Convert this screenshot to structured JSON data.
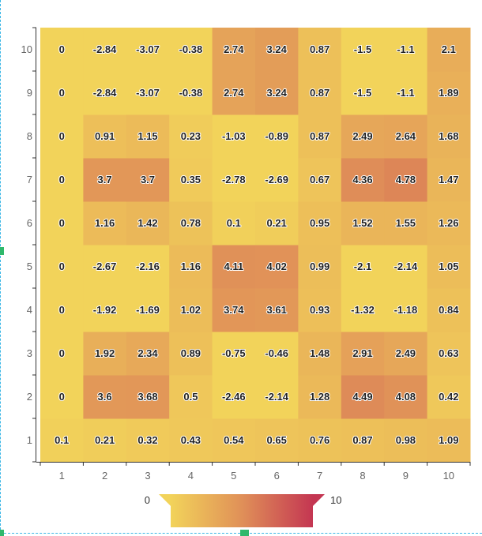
{
  "chart_data": {
    "type": "heatmap",
    "title": "",
    "xlabel": "",
    "ylabel": "",
    "x_categories": [
      "1",
      "2",
      "3",
      "4",
      "5",
      "6",
      "7",
      "8",
      "9",
      "10"
    ],
    "y_categories": [
      "1",
      "2",
      "3",
      "4",
      "5",
      "6",
      "7",
      "8",
      "9",
      "10"
    ],
    "values": [
      [
        0.1,
        0.21,
        0.32,
        0.43,
        0.54,
        0.65,
        0.76,
        0.87,
        0.98,
        1.09
      ],
      [
        0,
        3.6,
        3.68,
        0.5,
        -2.46,
        -2.14,
        1.28,
        4.49,
        4.08,
        0.42
      ],
      [
        0,
        1.92,
        2.34,
        0.89,
        -0.75,
        -0.46,
        1.48,
        2.91,
        2.49,
        0.63
      ],
      [
        0,
        -1.92,
        -1.69,
        1.02,
        3.74,
        3.61,
        0.93,
        -1.32,
        -1.18,
        0.84
      ],
      [
        0,
        -2.67,
        -2.16,
        1.16,
        4.11,
        4.02,
        0.99,
        -2.1,
        -2.14,
        1.05
      ],
      [
        0,
        1.16,
        1.42,
        0.78,
        0.1,
        0.21,
        0.95,
        1.52,
        1.55,
        1.26
      ],
      [
        0,
        3.7,
        3.7,
        0.35,
        -2.78,
        -2.69,
        0.67,
        4.36,
        4.78,
        1.47
      ],
      [
        0,
        0.91,
        1.15,
        0.23,
        -1.03,
        -0.89,
        0.87,
        2.49,
        2.64,
        1.68
      ],
      [
        0,
        -2.84,
        -3.07,
        -0.38,
        2.74,
        3.24,
        0.87,
        -1.5,
        -1.1,
        1.89
      ],
      [
        0,
        -2.84,
        -3.07,
        -0.38,
        2.74,
        3.24,
        0.87,
        -1.5,
        -1.1,
        2.1
      ]
    ],
    "visual_map": {
      "min": 0,
      "max": 10,
      "min_label": "0",
      "max_label": "10",
      "colors": [
        "#f2d35a",
        "#e09058",
        "#c43652"
      ]
    }
  }
}
